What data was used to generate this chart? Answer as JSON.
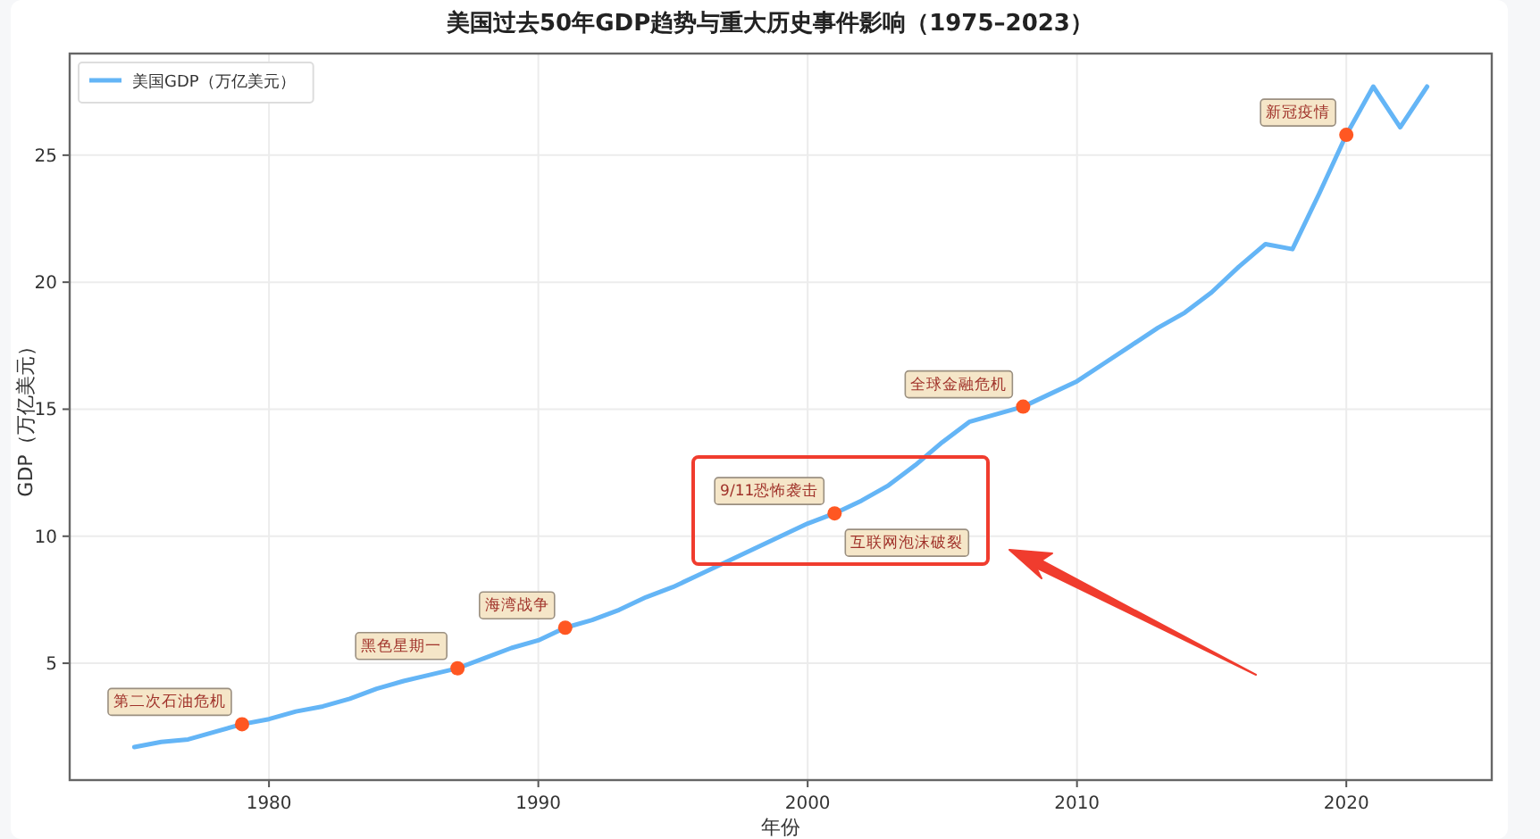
{
  "chart_data": {
    "type": "line",
    "title": "美国过去50年GDP趋势与重大历史事件影响（1975–2023）",
    "xlabel": "年份",
    "ylabel": "GDP（万亿美元）",
    "x": [
      1975,
      1976,
      1977,
      1978,
      1979,
      1980,
      1981,
      1982,
      1983,
      1984,
      1985,
      1986,
      1987,
      1988,
      1989,
      1990,
      1991,
      1992,
      1993,
      1994,
      1995,
      1996,
      1997,
      1998,
      1999,
      2000,
      2001,
      2002,
      2003,
      2004,
      2005,
      2006,
      2007,
      2008,
      2009,
      2010,
      2011,
      2012,
      2013,
      2014,
      2015,
      2016,
      2017,
      2018,
      2019,
      2020,
      2021,
      2022,
      2023
    ],
    "series": [
      {
        "name": "美国GDP（万亿美元）",
        "color": "#64b5f6",
        "values": [
          1.7,
          1.9,
          2.0,
          2.3,
          2.6,
          2.8,
          3.1,
          3.3,
          3.6,
          4.0,
          4.3,
          4.55,
          4.8,
          5.2,
          5.6,
          5.9,
          6.4,
          6.7,
          7.1,
          7.6,
          8.0,
          8.5,
          9.0,
          9.5,
          10.0,
          10.5,
          10.9,
          11.4,
          12.0,
          12.8,
          13.7,
          14.5,
          14.8,
          15.1,
          15.6,
          16.1,
          16.8,
          17.5,
          18.2,
          18.8,
          19.6,
          20.6,
          21.5,
          21.3,
          23.5,
          25.8,
          27.7,
          26.1,
          27.7
        ]
      },
      {
        "type": "scatter",
        "color": "#ff5722",
        "x": [
          1979,
          1987,
          1991,
          2001,
          2008,
          2020
        ],
        "values": [
          2.6,
          4.8,
          6.4,
          10.9,
          15.1,
          25.8
        ]
      }
    ],
    "xlim": [
      1972.6,
      2025.4
    ],
    "ylim": [
      0.4,
      29.0
    ],
    "xticks": [
      1980,
      1990,
      2000,
      2010,
      2020
    ],
    "yticks": [
      5,
      10,
      15,
      20,
      25
    ],
    "grid": true,
    "legend": "top left",
    "annotations": [
      {
        "text": "第二次石油危机",
        "x": 1979,
        "y": 2.6
      },
      {
        "text": "黑色星期一",
        "x": 1987,
        "y": 4.8
      },
      {
        "text": "海湾战争",
        "x": 1991,
        "y": 6.4
      },
      {
        "text": "9/11恐怖袭击",
        "x": 2001,
        "y": 10.9
      },
      {
        "text": "互联网泡沫破裂",
        "x": 2001,
        "y": 10.9
      },
      {
        "text": "全球金融危机",
        "x": 2008,
        "y": 15.1
      },
      {
        "text": "新冠疫情",
        "x": 2020,
        "y": 25.8
      }
    ]
  }
}
